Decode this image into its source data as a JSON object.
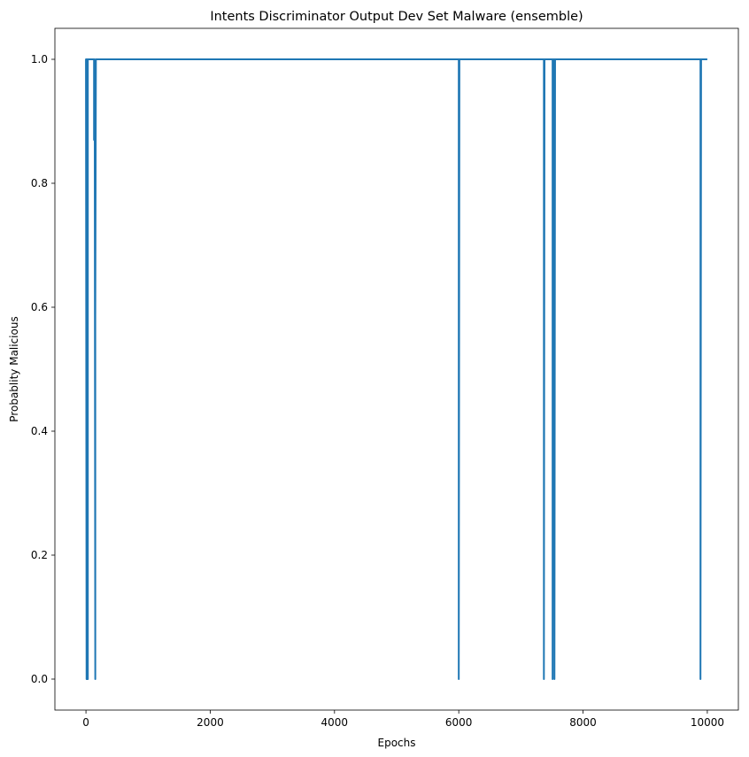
{
  "chart_data": {
    "type": "line",
    "title": "Intents Discriminator Output Dev Set Malware (ensemble)",
    "xlabel": "Epochs",
    "ylabel": "Probablity Malicious",
    "xlim": [
      -500,
      10500
    ],
    "ylim": [
      -0.05,
      1.05
    ],
    "xticks": [
      0,
      2000,
      4000,
      6000,
      8000,
      10000
    ],
    "xtick_labels": [
      "0",
      "2000",
      "4000",
      "6000",
      "8000",
      "10000"
    ],
    "yticks": [
      0.0,
      0.2,
      0.4,
      0.6,
      0.8,
      1.0
    ],
    "ytick_labels": [
      "0.0",
      "0.2",
      "0.4",
      "0.6",
      "0.8",
      "1.0"
    ],
    "grid": false,
    "color": "#1f77b4",
    "series": [
      {
        "x": [
          0,
          0,
          0,
          10,
          10,
          20,
          20,
          30,
          30,
          40,
          40,
          130,
          130,
          140,
          140,
          150,
          150,
          160,
          160,
          6000,
          6000,
          6010,
          6010,
          7370,
          7370,
          7380,
          7380,
          7510,
          7510,
          7520,
          7520,
          7540,
          7540,
          7550,
          7550,
          9890,
          9890,
          9900,
          9900,
          10000
        ],
        "y": [
          0.99,
          1.0,
          1.0,
          0.0,
          1.0,
          1.0,
          1.0,
          0.0,
          1.0,
          1.0,
          1.0,
          1.0,
          0.87,
          1.0,
          1.0,
          0.0,
          0.58,
          1.0,
          1.0,
          1.0,
          0.0,
          1.0,
          1.0,
          1.0,
          0.0,
          1.0,
          1.0,
          1.0,
          0.0,
          1.0,
          1.0,
          1.0,
          0.0,
          1.0,
          1.0,
          1.0,
          0.0,
          1.0,
          1.0,
          1.0
        ]
      }
    ]
  }
}
